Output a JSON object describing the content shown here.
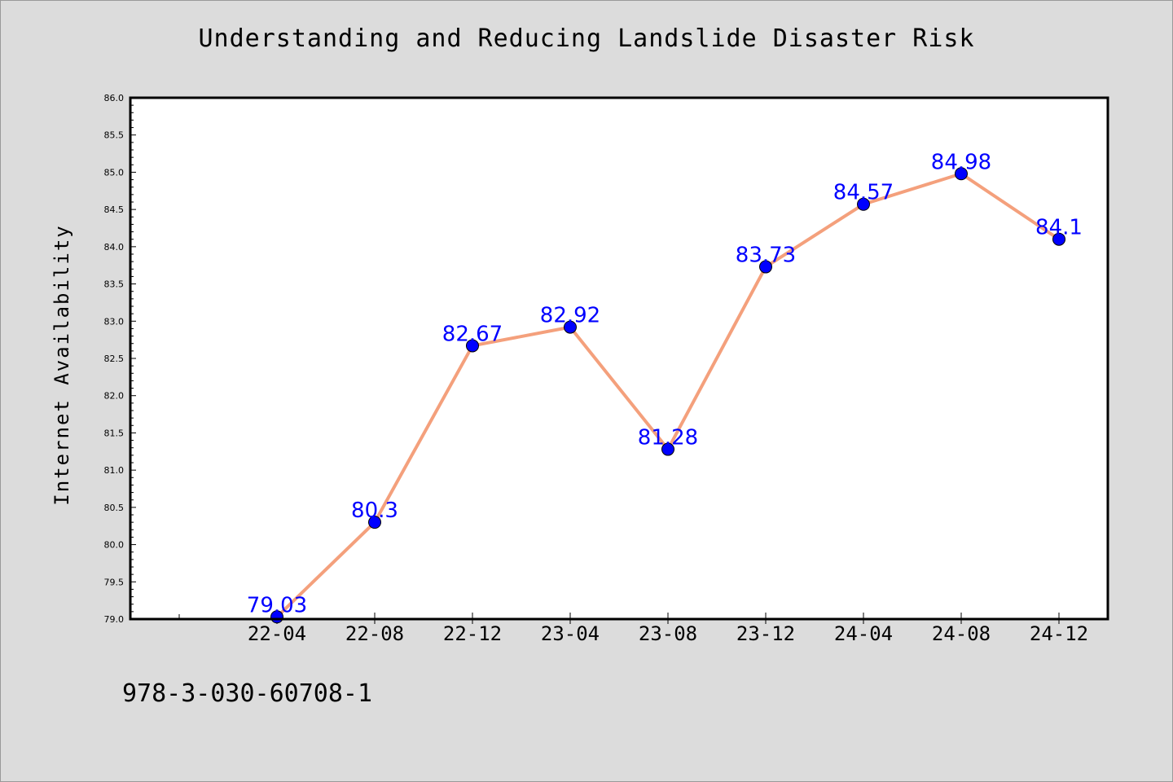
{
  "figure": {
    "title": "Understanding and Reducing Landslide Disaster Risk",
    "footer_text": "978-3-030-60708-1"
  },
  "colors": {
    "background": "#dcdcdc",
    "plot_background": "#ffffff",
    "line": "#f4a07c",
    "marker": "#0000ff",
    "label": "#0000ff"
  },
  "chart_data": {
    "type": "line",
    "title": "Understanding and Reducing Landslide Disaster Risk",
    "xlabel": "",
    "ylabel": "Internet Availability",
    "ylim": [
      79.0,
      86.0
    ],
    "yticks": [
      "79.0",
      "79.5",
      "80.0",
      "80.5",
      "81.0",
      "81.5",
      "82.0",
      "82.5",
      "83.0",
      "83.5",
      "84.0",
      "84.5",
      "85.0",
      "85.5",
      "86.0"
    ],
    "categories": [
      "22-04",
      "22-08",
      "22-12",
      "23-04",
      "23-08",
      "23-12",
      "24-04",
      "24-08",
      "24-12"
    ],
    "data_labels": [
      "79.03",
      "80.3",
      "82.67",
      "82.92",
      "81.28",
      "83.73",
      "84.57",
      "84.98",
      "84.1"
    ],
    "series": [
      {
        "values": [
          79.03,
          80.3,
          82.67,
          82.92,
          81.28,
          83.73,
          84.57,
          84.98,
          84.1
        ]
      }
    ],
    "grid": false,
    "legend": "none"
  }
}
